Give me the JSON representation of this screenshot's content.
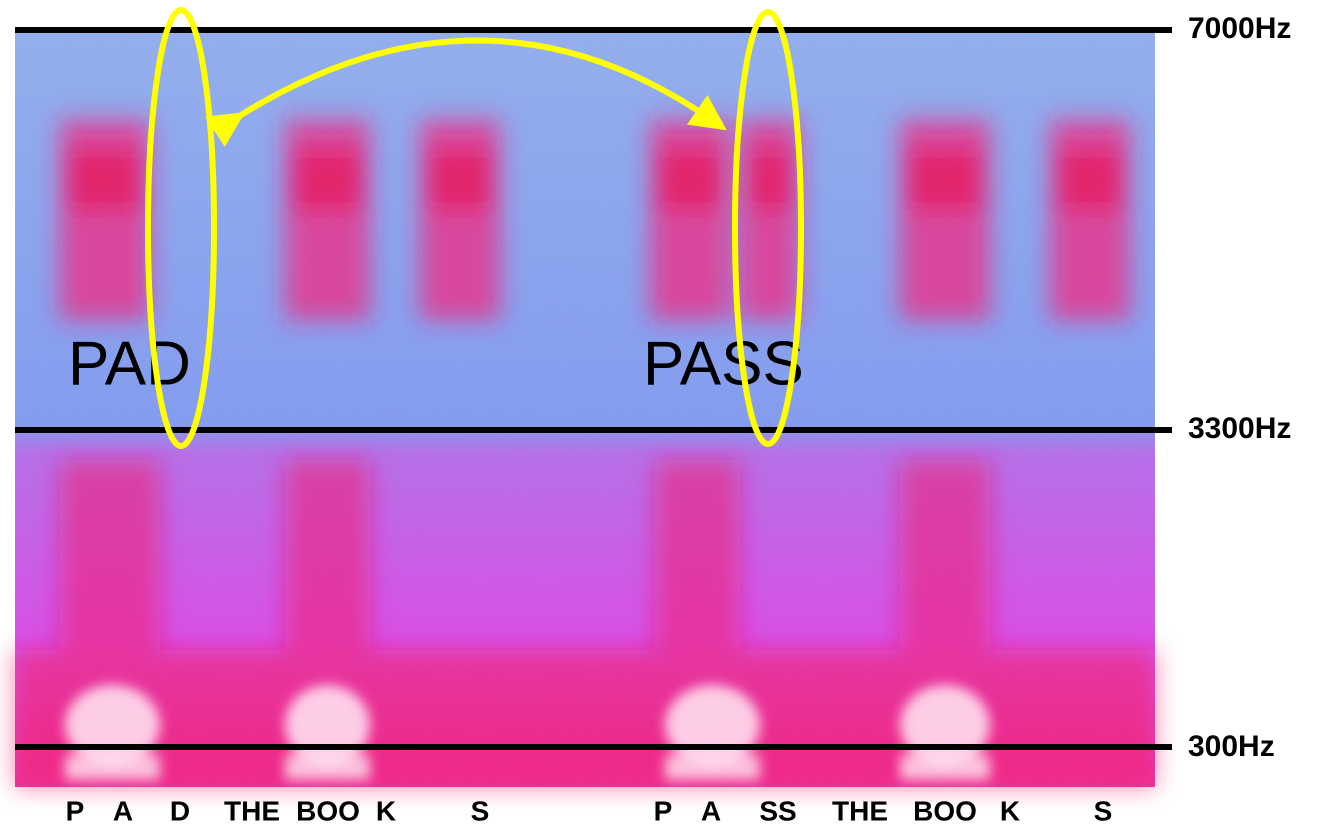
{
  "frequency_labels": [
    "7000Hz",
    "3300Hz",
    "300Hz"
  ],
  "word_labels": [
    "PAD",
    "PASS"
  ],
  "phoneme_labels": [
    "P",
    "A",
    "D",
    "THE",
    "BOO",
    "K",
    "S",
    "P",
    "A",
    "SS",
    "THE",
    "BOO",
    "K",
    "S"
  ]
}
